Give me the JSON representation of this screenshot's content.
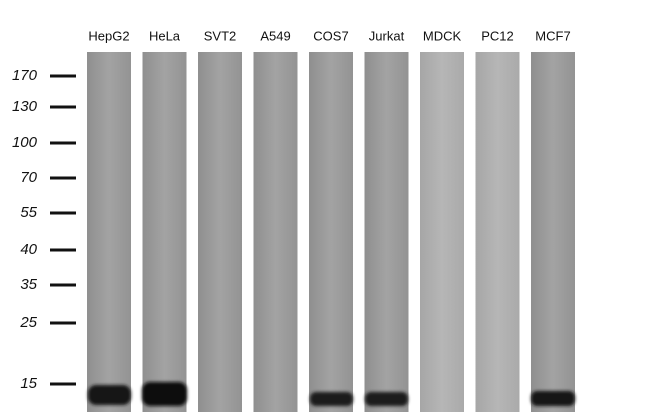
{
  "lanes": [
    "HepG2",
    "HeLa",
    "SVT2",
    "A549",
    "COS7",
    "Jurkat",
    "MDCK",
    "PC12",
    "MCF7"
  ],
  "markers": [
    170,
    130,
    100,
    70,
    55,
    40,
    35,
    25,
    15
  ]
}
